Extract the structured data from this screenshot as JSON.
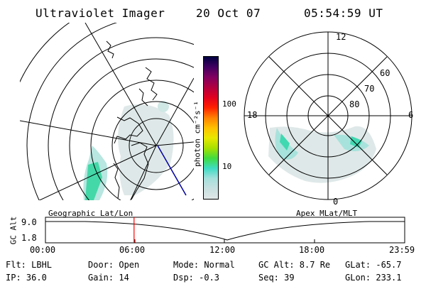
{
  "header": {
    "title": "Ultraviolet Imager",
    "date": "20 Oct 07",
    "time": "05:54:59 UT"
  },
  "colorbar": {
    "unit_label": "photon cm⁻²s⁻¹",
    "ticks": [
      "100",
      "10"
    ],
    "scale": "log",
    "colors": [
      "#e0e6e6",
      "#c8e0e0",
      "#a6e0dc",
      "#3fdcc4",
      "#40dc40",
      "#a8e000",
      "#e8e800",
      "#ffc000",
      "#ff8000",
      "#ff2000",
      "#e00020",
      "#b00040",
      "#800060",
      "#400060",
      "#000040"
    ]
  },
  "left_panel": {
    "label": "Geographic Lat/Lon"
  },
  "right_panel": {
    "label": "Apex MLat/MLT",
    "mlt_labels": [
      "12",
      "18",
      "6",
      "0"
    ],
    "lat_labels": [
      "60",
      "70",
      "80"
    ]
  },
  "timeline": {
    "axis_label": "GC Alt",
    "y_ticks": [
      "9.0",
      "1.8"
    ],
    "x_ticks": [
      "00:00",
      "06:00",
      "12:00",
      "18:00",
      "23:59"
    ],
    "marker_hour": 5.92,
    "marker_color": "#ff0000"
  },
  "status": {
    "flt": "Flt: LBHL",
    "door": "Door: Open",
    "mode": "Mode: Normal",
    "gc_alt": "GC Alt: 8.7 Re",
    "glat": "GLat: -65.7",
    "ip": "IP: 36.0",
    "gain": "Gain: 14",
    "dsp": "Dsp:   -0.3",
    "seq": "Seq: 39",
    "glon": "GLon: 233.1"
  }
}
